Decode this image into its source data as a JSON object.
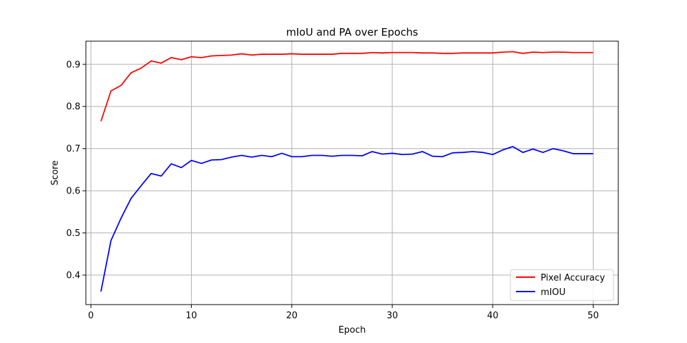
{
  "chart_data": {
    "type": "line",
    "title": "mIoU and PA over Epochs",
    "xlabel": "Epoch",
    "ylabel": "Score",
    "xlim": [
      -0.5,
      52.5
    ],
    "ylim": [
      0.33,
      0.955
    ],
    "xticks": [
      0,
      10,
      20,
      30,
      40,
      50
    ],
    "yticks": [
      0.4,
      0.5,
      0.6,
      0.7,
      0.8,
      0.9
    ],
    "grid": true,
    "legend_position": "lower-right",
    "x": [
      1,
      2,
      3,
      4,
      5,
      6,
      7,
      8,
      9,
      10,
      11,
      12,
      13,
      14,
      15,
      16,
      17,
      18,
      19,
      20,
      21,
      22,
      23,
      24,
      25,
      26,
      27,
      28,
      29,
      30,
      31,
      32,
      33,
      34,
      35,
      36,
      37,
      38,
      39,
      40,
      41,
      42,
      43,
      44,
      45,
      46,
      47,
      48,
      49,
      50
    ],
    "series": [
      {
        "name": "Pixel Accuracy",
        "color": "#ff0000",
        "values": [
          0.765,
          0.837,
          0.85,
          0.88,
          0.891,
          0.908,
          0.903,
          0.916,
          0.911,
          0.918,
          0.916,
          0.92,
          0.921,
          0.922,
          0.925,
          0.922,
          0.924,
          0.924,
          0.924,
          0.925,
          0.924,
          0.924,
          0.924,
          0.924,
          0.926,
          0.926,
          0.926,
          0.928,
          0.927,
          0.928,
          0.928,
          0.928,
          0.927,
          0.927,
          0.926,
          0.926,
          0.927,
          0.927,
          0.927,
          0.927,
          0.929,
          0.93,
          0.926,
          0.929,
          0.928,
          0.929,
          0.929,
          0.928,
          0.928,
          0.928
        ]
      },
      {
        "name": "mIOU",
        "color": "#0000ff",
        "values": [
          0.361,
          0.482,
          0.535,
          0.582,
          0.612,
          0.641,
          0.635,
          0.664,
          0.655,
          0.672,
          0.665,
          0.673,
          0.674,
          0.68,
          0.684,
          0.68,
          0.684,
          0.681,
          0.689,
          0.681,
          0.681,
          0.684,
          0.684,
          0.682,
          0.684,
          0.684,
          0.683,
          0.693,
          0.687,
          0.689,
          0.686,
          0.687,
          0.693,
          0.682,
          0.681,
          0.69,
          0.691,
          0.693,
          0.691,
          0.686,
          0.697,
          0.705,
          0.691,
          0.699,
          0.691,
          0.7,
          0.695,
          0.688,
          0.688,
          0.688
        ]
      }
    ]
  }
}
